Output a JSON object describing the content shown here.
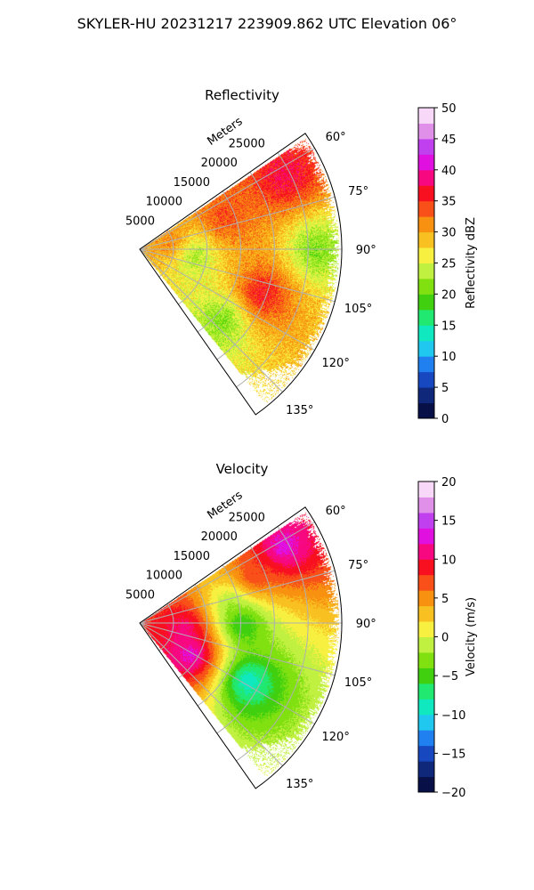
{
  "figure": {
    "suptitle": "SKYLER-HU  20231217  223909.862 UTC Elevation 06°"
  },
  "chart_data": [
    {
      "type": "heatmap",
      "projection": "polar-sector",
      "title": "Reflectivity",
      "radial_label": "Meters",
      "radial_ticks": [
        5000,
        10000,
        15000,
        20000,
        25000
      ],
      "radial_tick_labels": [
        "5000",
        "10000",
        "15000",
        "20000",
        "25000"
      ],
      "rlim": [
        0,
        30000
      ],
      "angle_ticks": [
        60,
        75,
        90,
        105,
        120,
        135
      ],
      "angle_tick_labels": [
        "60°",
        "75°",
        "90°",
        "105°",
        "120°",
        "135°"
      ],
      "angle_range": [
        55,
        145
      ],
      "grid": true,
      "colorbar": {
        "label": "Reflectivity dBZ",
        "range": [
          0,
          50
        ],
        "ticks": [
          0,
          5,
          10,
          15,
          20,
          25,
          30,
          35,
          40,
          45,
          50
        ],
        "tick_labels": [
          "0",
          "5",
          "10",
          "15",
          "20",
          "25",
          "30",
          "35",
          "40",
          "45",
          "50"
        ],
        "colors": [
          "#081048",
          "#10287a",
          "#1848c0",
          "#2080f0",
          "#20c8f0",
          "#10e8c0",
          "#20e870",
          "#40d010",
          "#80e010",
          "#c0f040",
          "#f8f040",
          "#f8c020",
          "#f89010",
          "#f85018",
          "#f81020",
          "#f80880",
          "#e010e0",
          "#c040f0",
          "#e090e8",
          "#f8d8f8"
        ]
      },
      "features": [
        {
          "angle": 80,
          "range": 5000,
          "value": 33
        },
        {
          "angle": 70,
          "range": 13000,
          "value": 35
        },
        {
          "angle": 63,
          "range": 24000,
          "value": 38
        },
        {
          "angle": 110,
          "range": 19000,
          "value": 38
        },
        {
          "angle": 95,
          "range": 8000,
          "value": 20
        },
        {
          "angle": 130,
          "range": 16000,
          "value": 20
        },
        {
          "angle": 90,
          "range": 26000,
          "value": 20
        }
      ]
    },
    {
      "type": "heatmap",
      "projection": "polar-sector",
      "title": "Velocity",
      "radial_label": "Meters",
      "radial_ticks": [
        5000,
        10000,
        15000,
        20000,
        25000
      ],
      "radial_tick_labels": [
        "5000",
        "10000",
        "15000",
        "20000",
        "25000"
      ],
      "rlim": [
        0,
        30000
      ],
      "angle_ticks": [
        60,
        75,
        90,
        105,
        120,
        135
      ],
      "angle_tick_labels": [
        "60°",
        "75°",
        "90°",
        "105°",
        "120°",
        "135°"
      ],
      "angle_range": [
        55,
        145
      ],
      "grid": true,
      "colorbar": {
        "label": "Velocity (m/s)",
        "range": [
          -20,
          20
        ],
        "ticks": [
          -20,
          -15,
          -10,
          -5,
          0,
          5,
          10,
          15,
          20
        ],
        "tick_labels": [
          "−20",
          "−15",
          "−10",
          "−5",
          "0",
          "5",
          "10",
          "15",
          "20"
        ],
        "colors": [
          "#081048",
          "#10287a",
          "#1848c0",
          "#2080f0",
          "#20c8f0",
          "#10e8c0",
          "#20e870",
          "#40d010",
          "#80e010",
          "#c0f040",
          "#f8f040",
          "#f8c020",
          "#f89010",
          "#f85018",
          "#f81020",
          "#f80880",
          "#e010e0",
          "#c040f0",
          "#e090e8",
          "#f8d8f8"
        ]
      },
      "features": [
        {
          "angle": 62,
          "range": 24000,
          "value": 14
        },
        {
          "angle": 68,
          "range": 18000,
          "value": 9
        },
        {
          "angle": 95,
          "range": 7000,
          "value": 12
        },
        {
          "angle": 120,
          "range": 9000,
          "value": 15
        },
        {
          "angle": 90,
          "range": 15000,
          "value": -9
        },
        {
          "angle": 118,
          "range": 18000,
          "value": -11
        },
        {
          "angle": 78,
          "range": 14000,
          "value": -3
        }
      ]
    }
  ]
}
